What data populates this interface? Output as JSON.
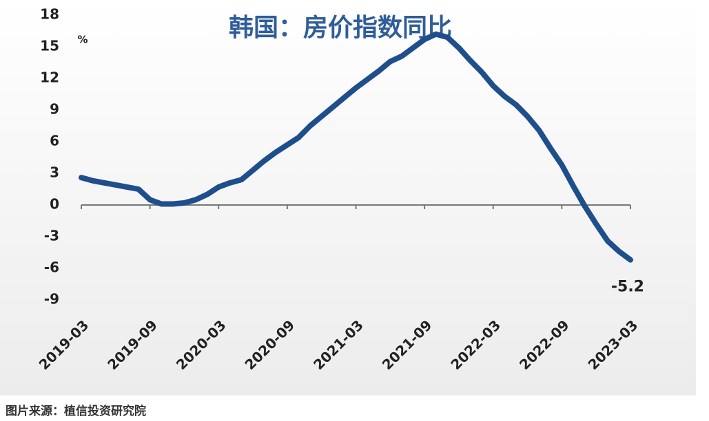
{
  "chart_data": {
    "type": "line",
    "title": "韩国：房价指数同比",
    "y_unit": "%",
    "source": "图片来源：植信投资研究院",
    "categories": [
      "2019-03",
      null,
      null,
      null,
      null,
      null,
      "2019-09",
      null,
      null,
      null,
      null,
      null,
      "2020-03",
      null,
      null,
      null,
      null,
      null,
      "2020-09",
      null,
      null,
      null,
      null,
      null,
      "2021-03",
      null,
      null,
      null,
      null,
      null,
      "2021-09",
      null,
      null,
      null,
      null,
      null,
      "2022-03",
      null,
      null,
      null,
      null,
      null,
      "2022-09",
      null,
      null,
      null,
      null,
      null,
      "2023-03"
    ],
    "series": [
      {
        "name": "韩国房价指数同比",
        "color": "#1f4e8c",
        "values": [
          2.6,
          2.3,
          2.1,
          1.9,
          1.7,
          1.5,
          0.5,
          0.1,
          0.1,
          0.2,
          0.5,
          1.0,
          1.7,
          2.1,
          2.4,
          3.3,
          4.2,
          5.0,
          5.7,
          6.4,
          7.5,
          8.4,
          9.3,
          10.2,
          11.1,
          11.9,
          12.7,
          13.6,
          14.1,
          14.9,
          15.7,
          16.2,
          15.9,
          14.9,
          13.7,
          12.6,
          11.3,
          10.3,
          9.5,
          8.4,
          7.1,
          5.4,
          3.8,
          1.8,
          -0.1,
          -1.8,
          -3.4,
          -4.4,
          -5.2
        ]
      }
    ],
    "ylim": [
      -9,
      18
    ],
    "yticks": [
      18,
      15,
      12,
      9,
      6,
      3,
      0,
      -3,
      -6,
      -9
    ]
  }
}
